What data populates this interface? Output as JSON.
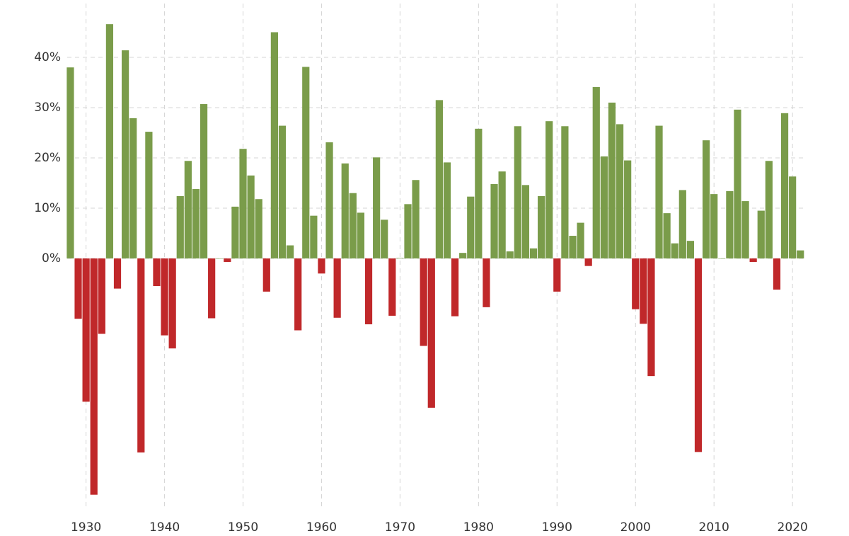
{
  "chart_data": {
    "type": "bar",
    "x": [
      1928,
      1929,
      1930,
      1931,
      1932,
      1933,
      1934,
      1935,
      1936,
      1937,
      1938,
      1939,
      1940,
      1941,
      1942,
      1943,
      1944,
      1945,
      1946,
      1947,
      1948,
      1949,
      1950,
      1951,
      1952,
      1953,
      1954,
      1955,
      1956,
      1957,
      1958,
      1959,
      1960,
      1961,
      1962,
      1963,
      1964,
      1965,
      1966,
      1967,
      1968,
      1969,
      1970,
      1971,
      1972,
      1973,
      1974,
      1975,
      1976,
      1977,
      1978,
      1979,
      1980,
      1981,
      1982,
      1983,
      1984,
      1985,
      1986,
      1987,
      1988,
      1989,
      1990,
      1991,
      1992,
      1993,
      1994,
      1995,
      1996,
      1997,
      1998,
      1999,
      2000,
      2001,
      2002,
      2003,
      2004,
      2005,
      2006,
      2007,
      2008,
      2009,
      2010,
      2011,
      2012,
      2013,
      2014,
      2015,
      2016,
      2017,
      2018,
      2019,
      2020,
      2021
    ],
    "values": [
      38,
      -12,
      -28.5,
      -47,
      -15,
      46.6,
      -6,
      41.4,
      27.9,
      -38.6,
      25.2,
      -5.5,
      -15.3,
      -17.9,
      12.4,
      19.4,
      13.8,
      30.7,
      -11.9,
      0,
      -0.7,
      10.3,
      21.8,
      16.5,
      11.8,
      -6.6,
      45,
      26.4,
      2.6,
      -14.3,
      38.1,
      8.5,
      -3,
      23.1,
      -11.8,
      18.9,
      13,
      9.1,
      -13.1,
      20.1,
      7.7,
      -11.4,
      0.1,
      10.8,
      15.6,
      -17.4,
      -29.7,
      31.5,
      19.1,
      -11.5,
      1.1,
      12.3,
      25.8,
      -9.7,
      14.8,
      17.3,
      1.4,
      26.3,
      14.6,
      2,
      12.4,
      27.3,
      -6.6,
      26.3,
      4.5,
      7.1,
      -1.5,
      34.1,
      20.3,
      31,
      26.7,
      19.5,
      -10.1,
      -13,
      -23.4,
      26.4,
      9,
      3,
      13.6,
      3.5,
      -38.5,
      23.5,
      12.8,
      0,
      13.4,
      29.6,
      11.4,
      -0.7,
      9.5,
      19.4,
      -6.2,
      28.9,
      16.3,
      1.6
    ],
    "positive_color": "#7a9c4a",
    "negative_color": "#c0282a",
    "xlim": [
      1927.6,
      2021.7
    ],
    "xticks": [
      1930,
      1940,
      1950,
      1960,
      1970,
      1980,
      1990,
      2000,
      2010,
      2020
    ],
    "ylim": [
      -50,
      50
    ],
    "yticks": [
      {
        "value": 0,
        "label": "0%"
      },
      {
        "value": 10,
        "label": "10%"
      },
      {
        "value": 20,
        "label": "20%"
      },
      {
        "value": 30,
        "label": "30%"
      },
      {
        "value": 40,
        "label": "40%"
      }
    ],
    "grid": true
  }
}
